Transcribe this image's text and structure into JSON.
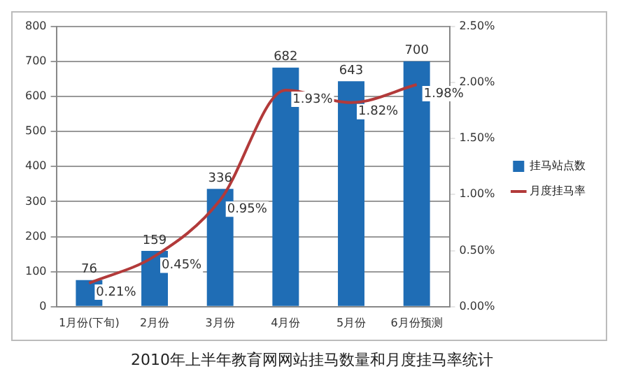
{
  "chart_data": {
    "type": "bar",
    "title": "2010年上半年教育网网站挂马数量和月度挂马率统计",
    "categories": [
      "1月份(下旬)",
      "2月份",
      "3月份",
      "4月份",
      "5月份",
      "6月份预测"
    ],
    "series": [
      {
        "name": "挂马站点数",
        "color": "#1f6db5",
        "values": [
          76,
          159,
          336,
          682,
          643,
          700
        ],
        "value_labels": [
          "76",
          "159",
          "336",
          "682",
          "643",
          "700"
        ]
      },
      {
        "name": "月度挂马率",
        "type": "line",
        "axis": "y2",
        "color": "#b23a3a",
        "values": [
          0.21,
          0.45,
          0.95,
          1.93,
          1.82,
          1.98
        ],
        "value_labels": [
          "0.21%",
          "0.45%",
          "0.95%",
          "1.93%",
          "1.82%",
          "1.98%"
        ]
      }
    ],
    "ylim": [
      0,
      800
    ],
    "yticks": [
      0,
      100,
      200,
      300,
      400,
      500,
      600,
      700,
      800
    ],
    "y2lim": [
      0,
      2.5
    ],
    "y2ticks": [
      {
        "value": 0,
        "label": "0.00%"
      },
      {
        "value": 0.5,
        "label": "0.50%"
      },
      {
        "value": 1,
        "label": "1.00%"
      },
      {
        "value": 1.5,
        "label": "1.50%"
      },
      {
        "value": 2,
        "label": "2.00%"
      },
      {
        "value": 2.5,
        "label": "2.50%"
      }
    ],
    "grid": "y",
    "legend": "right",
    "marker": "none",
    "line_style": "solid"
  }
}
